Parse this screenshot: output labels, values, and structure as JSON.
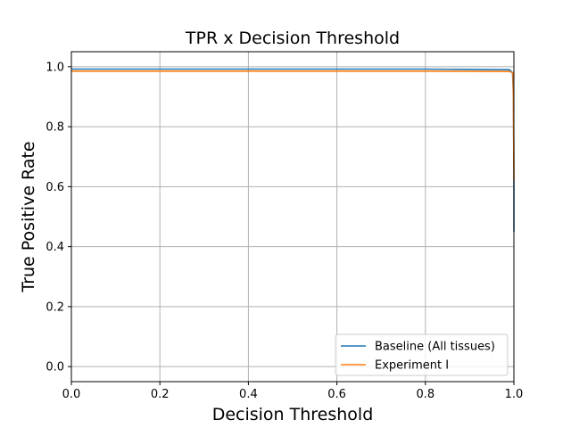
{
  "chart_data": {
    "type": "line",
    "title": "TPR x Decision Threshold",
    "xlabel": "Decision Threshold",
    "ylabel": "True Positive Rate",
    "xlim": [
      0.0,
      1.0
    ],
    "ylim": [
      -0.05,
      1.05
    ],
    "xticks": [
      "0.0",
      "0.2",
      "0.4",
      "0.6",
      "0.8",
      "1.0"
    ],
    "yticks": [
      "0.0",
      "0.2",
      "0.4",
      "0.6",
      "0.8",
      "1.0"
    ],
    "grid": true,
    "legend_position": "lower-right",
    "series": [
      {
        "name": "Baseline (All tissues)",
        "color": "#1f77b4",
        "x": [
          0.0,
          0.2,
          0.4,
          0.6,
          0.8,
          0.99,
          0.997,
          0.999,
          1.0,
          1.0
        ],
        "y": [
          0.992,
          0.992,
          0.992,
          0.992,
          0.992,
          0.99,
          0.98,
          0.9,
          0.6,
          0.45
        ]
      },
      {
        "name": "Experiment I",
        "color": "#ff7f0e",
        "x": [
          0.0,
          0.2,
          0.4,
          0.6,
          0.8,
          0.99,
          0.998,
          0.999,
          1.0
        ],
        "y": [
          0.985,
          0.985,
          0.985,
          0.985,
          0.985,
          0.984,
          0.98,
          0.9,
          0.62
        ]
      }
    ]
  }
}
